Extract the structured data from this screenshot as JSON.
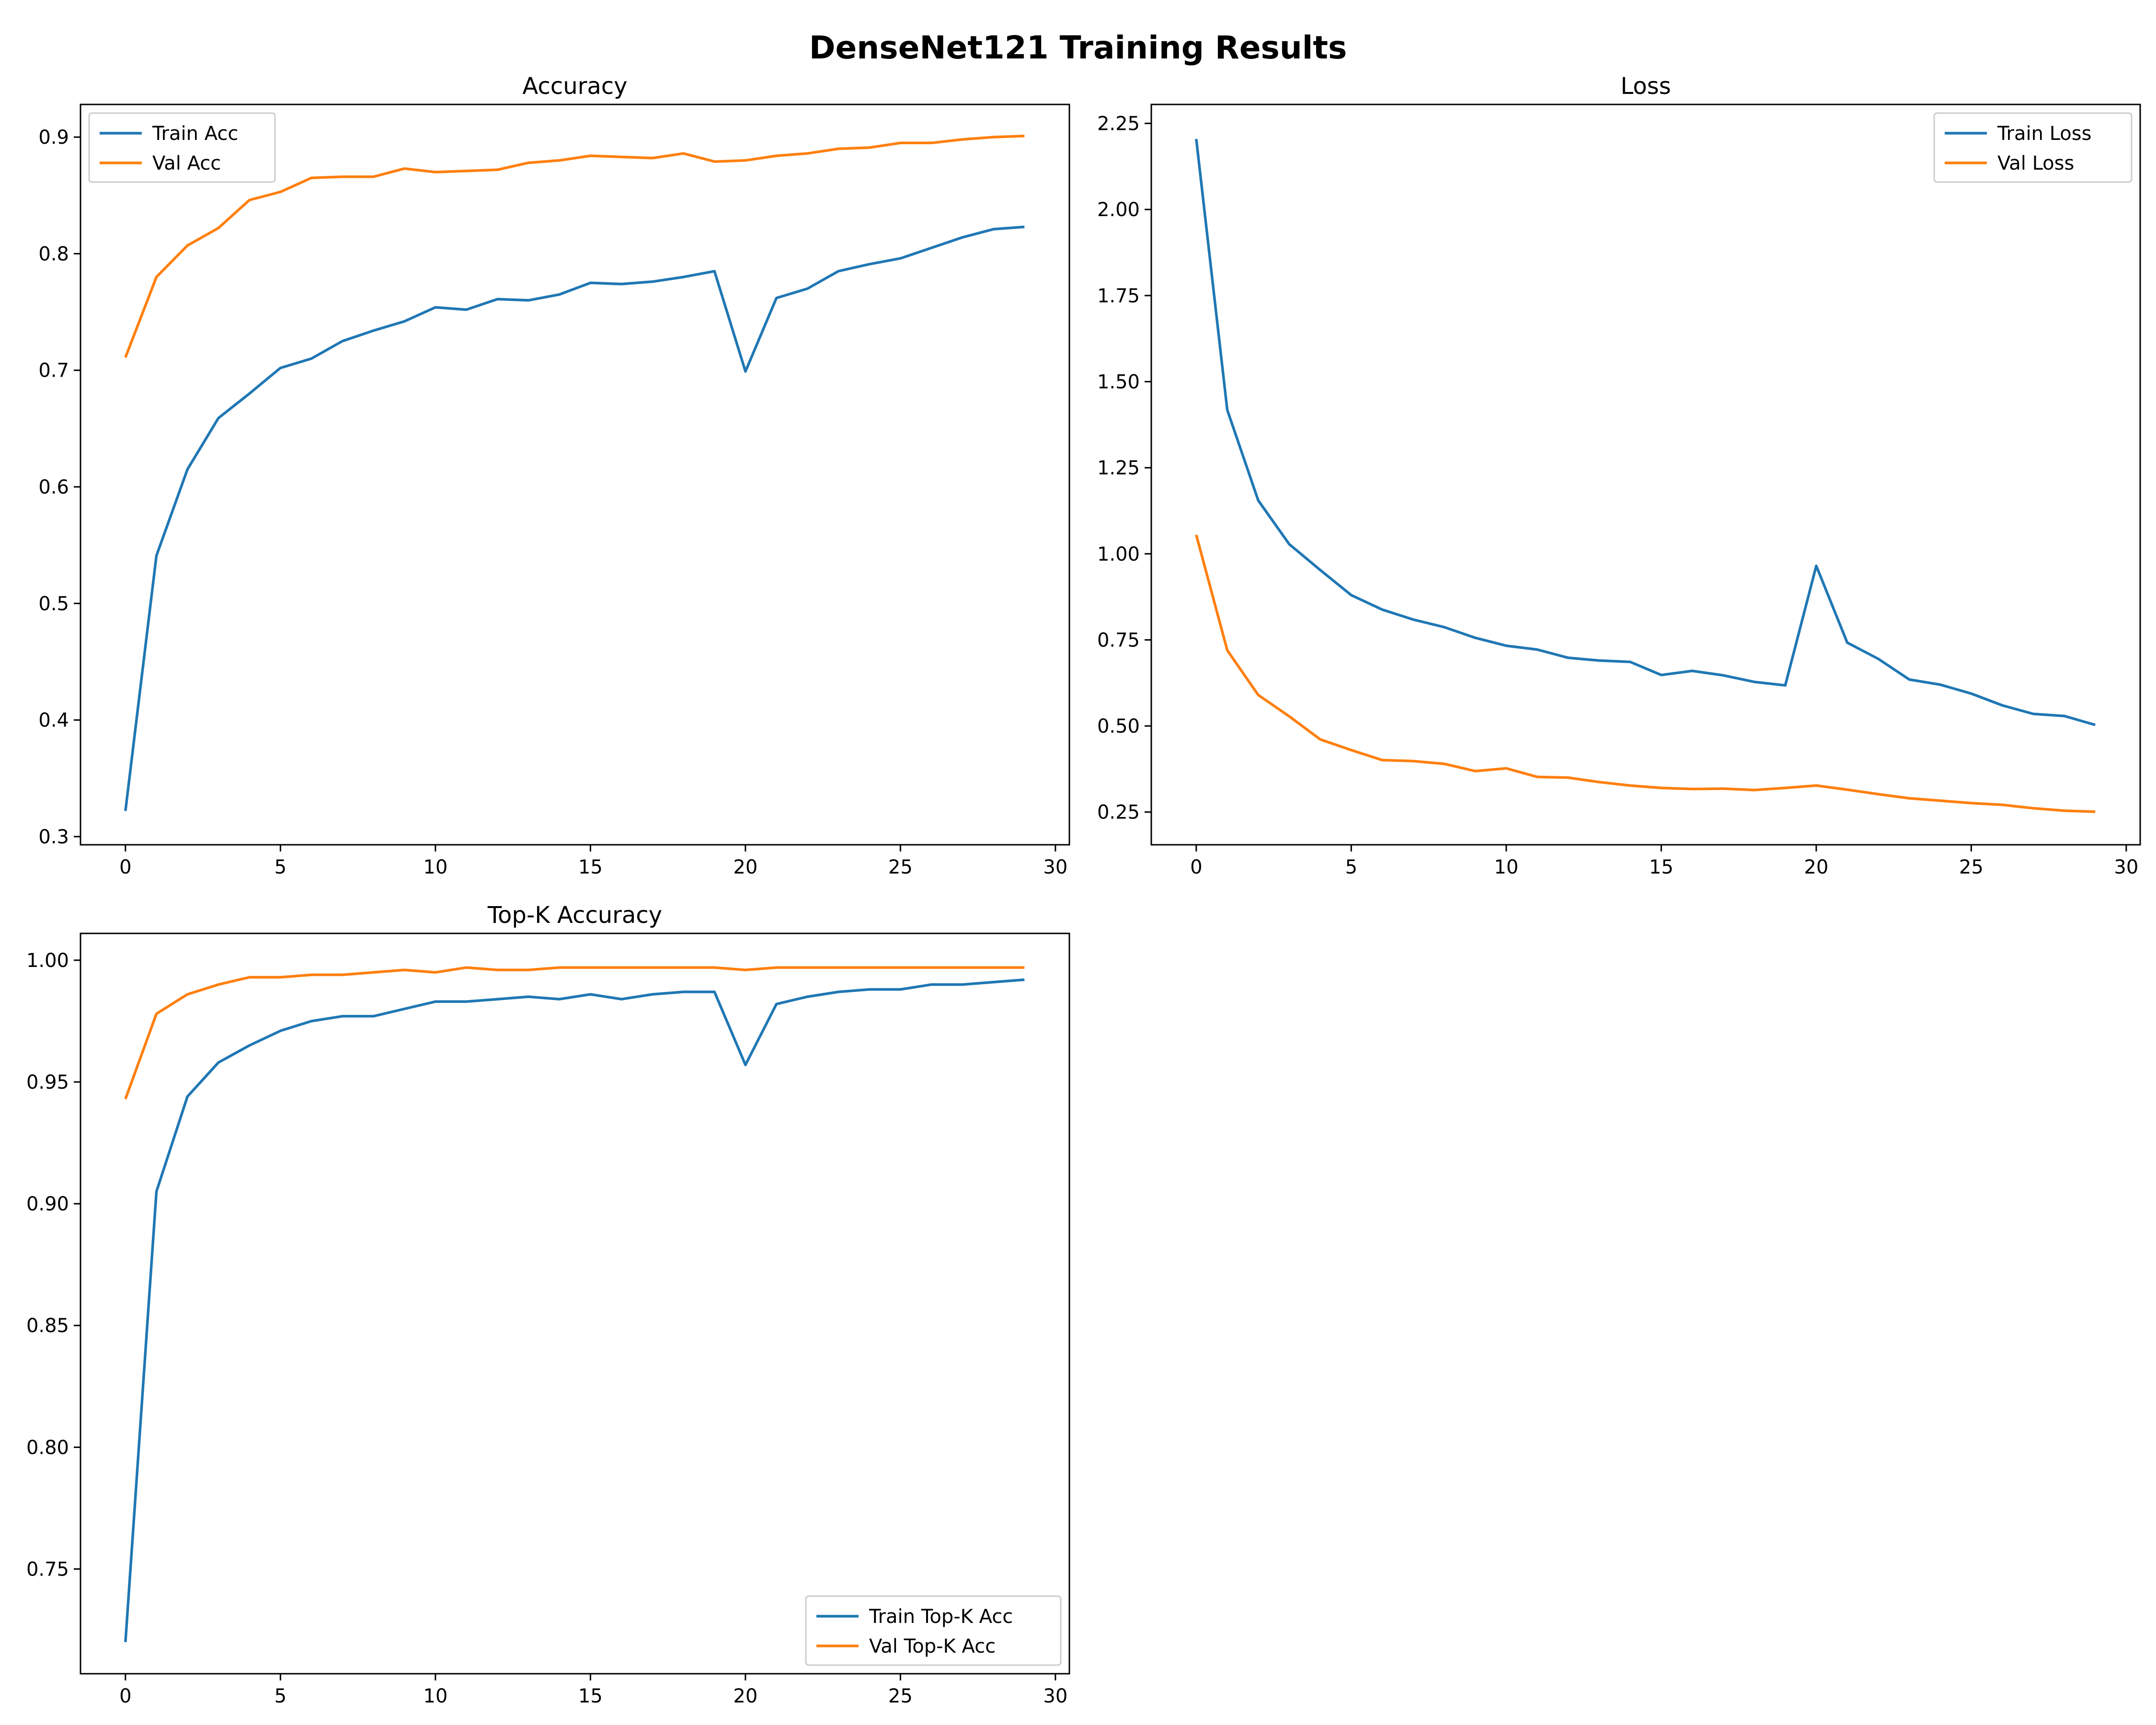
{
  "figure": {
    "title": "DenseNet121 Training Results"
  },
  "colors": {
    "train": "#1f77b4",
    "val": "#ff7f0e"
  },
  "chart_data": [
    {
      "type": "line",
      "title": "Accuracy",
      "xlim": [
        -1.45,
        30.45
      ],
      "ylim": [
        0.293,
        0.928
      ],
      "xticks": [
        0,
        5,
        10,
        15,
        20,
        25,
        30
      ],
      "yticks": [
        0.3,
        0.4,
        0.5,
        0.6,
        0.7,
        0.8,
        0.9
      ],
      "ytick_labels": [
        "0.3",
        "0.4",
        "0.5",
        "0.6",
        "0.7",
        "0.8",
        "0.9"
      ],
      "legend_loc": "upper left",
      "x": [
        0,
        1,
        2,
        3,
        4,
        5,
        6,
        7,
        8,
        9,
        10,
        11,
        12,
        13,
        14,
        15,
        16,
        17,
        18,
        19,
        20,
        21,
        22,
        23,
        24,
        25,
        26,
        27,
        28,
        29
      ],
      "series": [
        {
          "name": "Train Acc",
          "color": "#1f77b4",
          "values": [
            0.322,
            0.541,
            0.615,
            0.659,
            0.68,
            0.702,
            0.71,
            0.725,
            0.734,
            0.742,
            0.754,
            0.752,
            0.761,
            0.76,
            0.765,
            0.775,
            0.774,
            0.776,
            0.78,
            0.785,
            0.699,
            0.762,
            0.77,
            0.785,
            0.791,
            0.796,
            0.805,
            0.814,
            0.821,
            0.823
          ]
        },
        {
          "name": "Val Acc",
          "color": "#ff7f0e",
          "values": [
            0.711,
            0.78,
            0.807,
            0.822,
            0.846,
            0.853,
            0.865,
            0.866,
            0.866,
            0.873,
            0.87,
            0.871,
            0.872,
            0.878,
            0.88,
            0.884,
            0.883,
            0.882,
            0.886,
            0.879,
            0.88,
            0.884,
            0.886,
            0.89,
            0.891,
            0.895,
            0.895,
            0.898,
            0.9,
            0.901
          ]
        }
      ]
    },
    {
      "type": "line",
      "title": "Loss",
      "xlim": [
        -1.45,
        30.45
      ],
      "ylim": [
        0.155,
        2.305
      ],
      "xticks": [
        0,
        5,
        10,
        15,
        20,
        25,
        30
      ],
      "yticks": [
        0.25,
        0.5,
        0.75,
        1.0,
        1.25,
        1.5,
        1.75,
        2.0,
        2.25
      ],
      "ytick_labels": [
        "0.25",
        "0.50",
        "0.75",
        "1.00",
        "1.25",
        "1.50",
        "1.75",
        "2.00",
        "2.25"
      ],
      "legend_loc": "upper right",
      "x": [
        0,
        1,
        2,
        3,
        4,
        5,
        6,
        7,
        8,
        9,
        10,
        11,
        12,
        13,
        14,
        15,
        16,
        17,
        18,
        19,
        20,
        21,
        22,
        23,
        24,
        25,
        26,
        27,
        28,
        29
      ],
      "series": [
        {
          "name": "Train Loss",
          "color": "#1f77b4",
          "values": [
            2.205,
            1.418,
            1.155,
            1.028,
            0.953,
            0.88,
            0.838,
            0.809,
            0.787,
            0.756,
            0.733,
            0.722,
            0.698,
            0.69,
            0.686,
            0.648,
            0.66,
            0.647,
            0.628,
            0.618,
            0.965,
            0.742,
            0.695,
            0.635,
            0.62,
            0.594,
            0.56,
            0.535,
            0.529,
            0.503
          ]
        },
        {
          "name": "Val Loss",
          "color": "#ff7f0e",
          "values": [
            1.055,
            0.72,
            0.59,
            0.528,
            0.461,
            0.43,
            0.401,
            0.398,
            0.39,
            0.369,
            0.377,
            0.352,
            0.35,
            0.337,
            0.327,
            0.32,
            0.317,
            0.318,
            0.314,
            0.32,
            0.327,
            0.315,
            0.302,
            0.29,
            0.283,
            0.276,
            0.271,
            0.261,
            0.254,
            0.251
          ]
        }
      ]
    },
    {
      "type": "line",
      "title": "Top-K Accuracy",
      "xlim": [
        -1.45,
        30.45
      ],
      "ylim": [
        0.707,
        1.011
      ],
      "xticks": [
        0,
        5,
        10,
        15,
        20,
        25,
        30
      ],
      "yticks": [
        0.75,
        0.8,
        0.85,
        0.9,
        0.95,
        1.0
      ],
      "ytick_labels": [
        "0.75",
        "0.80",
        "0.85",
        "0.90",
        "0.95",
        "1.00"
      ],
      "legend_loc": "lower right",
      "x": [
        0,
        1,
        2,
        3,
        4,
        5,
        6,
        7,
        8,
        9,
        10,
        11,
        12,
        13,
        14,
        15,
        16,
        17,
        18,
        19,
        20,
        21,
        22,
        23,
        24,
        25,
        26,
        27,
        28,
        29
      ],
      "series": [
        {
          "name": "Train Top-K Acc",
          "color": "#1f77b4",
          "values": [
            0.72,
            0.905,
            0.944,
            0.958,
            0.965,
            0.971,
            0.975,
            0.977,
            0.977,
            0.98,
            0.983,
            0.983,
            0.984,
            0.985,
            0.984,
            0.986,
            0.984,
            0.986,
            0.987,
            0.987,
            0.957,
            0.982,
            0.985,
            0.987,
            0.988,
            0.988,
            0.99,
            0.99,
            0.991,
            0.992
          ]
        },
        {
          "name": "Val Top-K Acc",
          "color": "#ff7f0e",
          "values": [
            0.943,
            0.978,
            0.986,
            0.99,
            0.993,
            0.993,
            0.994,
            0.994,
            0.995,
            0.996,
            0.995,
            0.997,
            0.996,
            0.996,
            0.997,
            0.997,
            0.997,
            0.997,
            0.997,
            0.997,
            0.996,
            0.997,
            0.997,
            0.997,
            0.997,
            0.997,
            0.997,
            0.997,
            0.997,
            0.997
          ]
        }
      ]
    }
  ]
}
